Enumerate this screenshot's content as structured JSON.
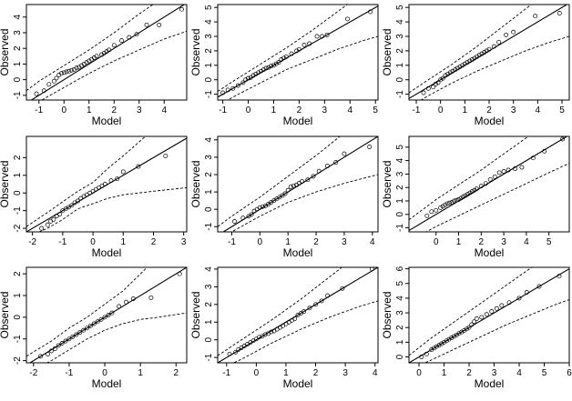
{
  "chart_data": [
    {
      "type": "scatter",
      "xlabel": "Model",
      "ylabel": "Observed",
      "xlim": [
        -1.5,
        4.9
      ],
      "ylim": [
        -1.3,
        4.8
      ],
      "xticks": [
        "-1",
        "0",
        "1",
        "2",
        "3",
        "4"
      ],
      "yticks": [
        "-1",
        "0",
        "1",
        "2",
        "3",
        "4"
      ],
      "reference_line": {
        "slope": 1,
        "intercept": 0
      },
      "points": {
        "x": [
          -1.1,
          -0.8,
          -0.6,
          -0.4,
          -0.3,
          -0.2,
          -0.1,
          0.0,
          0.1,
          0.2,
          0.3,
          0.4,
          0.5,
          0.6,
          0.7,
          0.8,
          0.9,
          1.0,
          1.1,
          1.2,
          1.3,
          1.5,
          1.6,
          1.7,
          1.8,
          2.0,
          2.3,
          2.6,
          2.9,
          3.3,
          3.8,
          4.7
        ],
        "y": [
          -0.9,
          -0.7,
          -0.3,
          -0.1,
          0.1,
          0.3,
          0.4,
          0.45,
          0.5,
          0.55,
          0.6,
          0.65,
          0.75,
          0.8,
          0.9,
          1.0,
          1.1,
          1.2,
          1.3,
          1.4,
          1.5,
          1.6,
          1.7,
          1.8,
          1.9,
          2.2,
          2.5,
          2.7,
          2.9,
          3.5,
          3.5,
          4.5
        ]
      },
      "envelope": {
        "x": [
          -1.5,
          -1.0,
          0.0,
          1.0,
          2.0,
          3.0,
          4.0,
          4.9
        ],
        "upper": [
          -0.7,
          -0.1,
          0.9,
          1.9,
          3.0,
          4.2,
          5.3,
          6.5
        ],
        "lower": [
          -1.9,
          -1.4,
          -0.5,
          0.4,
          1.2,
          1.9,
          2.6,
          3.1
        ]
      }
    },
    {
      "type": "scatter",
      "xlabel": "Model",
      "ylabel": "Observed",
      "xlim": [
        -1.2,
        5.1
      ],
      "ylim": [
        -1.4,
        5.2
      ],
      "xticks": [
        "-1",
        "0",
        "1",
        "2",
        "3",
        "4",
        "5"
      ],
      "yticks": [
        "-1",
        "0",
        "1",
        "2",
        "3",
        "4",
        "5"
      ],
      "reference_line": {
        "slope": 1,
        "intercept": 0
      },
      "points": {
        "x": [
          -1.0,
          -0.8,
          -0.6,
          -0.4,
          -0.2,
          -0.1,
          0.0,
          0.1,
          0.2,
          0.3,
          0.4,
          0.5,
          0.6,
          0.7,
          0.8,
          0.9,
          1.0,
          1.1,
          1.2,
          1.3,
          1.4,
          1.5,
          1.7,
          1.9,
          2.0,
          2.2,
          2.4,
          2.7,
          2.9,
          3.1,
          3.9,
          4.8
        ],
        "y": [
          -0.9,
          -0.7,
          -0.6,
          -0.4,
          -0.2,
          0.0,
          0.1,
          0.15,
          0.3,
          0.4,
          0.5,
          0.6,
          0.7,
          0.8,
          0.85,
          0.95,
          1.0,
          1.1,
          1.2,
          1.4,
          1.5,
          1.6,
          1.8,
          2.0,
          2.1,
          2.4,
          2.5,
          3.0,
          3.0,
          3.1,
          4.2,
          4.7
        ]
      },
      "envelope": {
        "x": [
          -1.2,
          -0.5,
          0.5,
          1.5,
          2.5,
          3.5,
          4.5,
          5.1
        ],
        "upper": [
          -0.8,
          0.0,
          1.1,
          2.2,
          3.4,
          4.7,
          6.0,
          6.8
        ],
        "lower": [
          -1.8,
          -1.1,
          -0.2,
          0.7,
          1.4,
          2.1,
          2.7,
          3.0
        ]
      }
    },
    {
      "type": "scatter",
      "xlabel": "Model",
      "ylabel": "Observed",
      "xlim": [
        -1.3,
        5.3
      ],
      "ylim": [
        -1.4,
        5.2
      ],
      "xticks": [
        "-1",
        "0",
        "1",
        "2",
        "3",
        "4",
        "5"
      ],
      "yticks": [
        "-1",
        "0",
        "1",
        "2",
        "3",
        "4",
        "5"
      ],
      "reference_line": {
        "slope": 1,
        "intercept": 0
      },
      "points": {
        "x": [
          -0.7,
          -0.5,
          -0.3,
          -0.2,
          -0.1,
          0.0,
          0.1,
          0.2,
          0.3,
          0.4,
          0.5,
          0.6,
          0.7,
          0.8,
          0.9,
          1.0,
          1.1,
          1.2,
          1.3,
          1.4,
          1.5,
          1.6,
          1.7,
          1.8,
          1.9,
          2.0,
          2.2,
          2.4,
          2.7,
          3.0,
          3.9,
          4.9
        ],
        "y": [
          -0.9,
          -0.6,
          -0.5,
          -0.3,
          -0.2,
          0.0,
          0.1,
          0.3,
          0.4,
          0.5,
          0.6,
          0.7,
          0.8,
          0.9,
          1.0,
          1.1,
          1.2,
          1.3,
          1.4,
          1.5,
          1.6,
          1.7,
          1.8,
          1.9,
          2.0,
          2.1,
          2.3,
          2.6,
          3.1,
          3.3,
          4.4,
          4.6
        ]
      },
      "envelope": {
        "x": [
          -1.3,
          -0.5,
          0.5,
          1.5,
          2.5,
          3.5,
          4.5,
          5.3
        ],
        "upper": [
          -0.9,
          0.0,
          1.1,
          2.3,
          3.6,
          4.9,
          6.2,
          7.2
        ],
        "lower": [
          -1.9,
          -1.1,
          -0.2,
          0.6,
          1.3,
          2.0,
          2.6,
          3.0
        ]
      }
    },
    {
      "type": "scatter",
      "xlabel": "Model",
      "ylabel": "Observed",
      "xlim": [
        -2.2,
        3.1
      ],
      "ylim": [
        -2.2,
        3.2
      ],
      "xticks": [
        "-2",
        "-1",
        "0",
        "1",
        "2",
        "3"
      ],
      "yticks": [
        "-2",
        "-1",
        "0",
        "1",
        "2"
      ],
      "reference_line": {
        "slope": 1,
        "intercept": 0
      },
      "points": {
        "x": [
          -1.7,
          -1.5,
          -1.4,
          -1.3,
          -1.2,
          -1.1,
          -1.0,
          -0.9,
          -0.8,
          -0.7,
          -0.6,
          -0.5,
          -0.4,
          -0.3,
          -0.2,
          -0.1,
          0.0,
          0.1,
          0.2,
          0.3,
          0.4,
          0.6,
          0.8,
          1.0,
          1.5,
          2.4
        ],
        "y": [
          -2.0,
          -1.8,
          -1.6,
          -1.5,
          -1.3,
          -1.2,
          -1.0,
          -0.9,
          -0.8,
          -0.7,
          -0.55,
          -0.45,
          -0.3,
          -0.2,
          -0.1,
          0.0,
          0.1,
          0.2,
          0.3,
          0.4,
          0.5,
          0.7,
          0.8,
          1.2,
          1.5,
          2.1
        ]
      },
      "envelope": {
        "x": [
          -2.2,
          -1.5,
          -1.0,
          -0.5,
          0.0,
          0.5,
          1.0,
          2.0,
          3.1
        ],
        "upper": [
          -1.9,
          -1.1,
          -0.5,
          0.1,
          0.6,
          1.4,
          2.1,
          3.6,
          5.0
        ],
        "lower": [
          -2.5,
          -2.0,
          -1.5,
          -0.9,
          -0.6,
          -0.3,
          -0.1,
          0.1,
          0.3
        ]
      }
    },
    {
      "type": "scatter",
      "xlabel": "Model",
      "ylabel": "Observed",
      "xlim": [
        -1.5,
        4.2
      ],
      "ylim": [
        -1.3,
        4.2
      ],
      "xticks": [
        "-1",
        "0",
        "1",
        "2",
        "3",
        "4"
      ],
      "yticks": [
        "-1",
        "0",
        "1",
        "2",
        "3",
        "4"
      ],
      "reference_line": {
        "slope": 1,
        "intercept": 0
      },
      "points": {
        "x": [
          -0.9,
          -0.6,
          -0.4,
          -0.3,
          -0.2,
          -0.1,
          0.0,
          0.1,
          0.2,
          0.3,
          0.4,
          0.5,
          0.6,
          0.7,
          0.8,
          0.9,
          1.0,
          1.1,
          1.2,
          1.3,
          1.4,
          1.5,
          1.7,
          1.9,
          2.1,
          2.4,
          2.7,
          3.0,
          3.9
        ],
        "y": [
          -0.7,
          -0.5,
          -0.4,
          -0.3,
          -0.1,
          0.0,
          0.1,
          0.15,
          0.2,
          0.3,
          0.4,
          0.5,
          0.6,
          0.7,
          0.8,
          0.9,
          1.1,
          1.3,
          1.35,
          1.4,
          1.5,
          1.6,
          1.7,
          1.9,
          2.2,
          2.5,
          2.7,
          3.2,
          3.6
        ]
      },
      "envelope": {
        "x": [
          -1.5,
          -1.0,
          0.0,
          1.0,
          2.0,
          3.0,
          4.2
        ],
        "upper": [
          -1.0,
          -0.4,
          0.7,
          1.9,
          3.1,
          4.4,
          6.0
        ],
        "lower": [
          -1.8,
          -1.3,
          -0.4,
          0.4,
          1.0,
          1.5,
          2.0
        ]
      }
    },
    {
      "type": "scatter",
      "xlabel": "Model",
      "ylabel": "Observed",
      "xlim": [
        -1.2,
        5.9
      ],
      "ylim": [
        -1.3,
        5.8
      ],
      "xticks": [
        "0",
        "1",
        "2",
        "3",
        "4",
        "5"
      ],
      "yticks": [
        "-1",
        "0",
        "1",
        "2",
        "3",
        "4",
        "5"
      ],
      "reference_line": {
        "slope": 1,
        "intercept": 0
      },
      "points": {
        "x": [
          -0.4,
          -0.2,
          0.0,
          0.2,
          0.3,
          0.4,
          0.5,
          0.6,
          0.7,
          0.8,
          0.9,
          1.0,
          1.1,
          1.2,
          1.3,
          1.4,
          1.5,
          1.6,
          1.7,
          1.8,
          2.0,
          2.2,
          2.4,
          2.6,
          2.8,
          3.0,
          3.2,
          3.5,
          3.8,
          4.3,
          4.8,
          5.6
        ],
        "y": [
          -0.1,
          0.2,
          0.3,
          0.5,
          0.6,
          0.7,
          0.8,
          0.85,
          0.9,
          1.0,
          1.05,
          1.1,
          1.2,
          1.3,
          1.4,
          1.5,
          1.6,
          1.7,
          1.8,
          1.9,
          2.1,
          2.3,
          2.6,
          2.8,
          3.1,
          3.2,
          3.3,
          3.4,
          3.5,
          4.2,
          4.7,
          5.6
        ]
      },
      "envelope": {
        "x": [
          -1.2,
          0.0,
          1.0,
          2.0,
          3.0,
          4.0,
          5.0,
          5.9
        ],
        "upper": [
          -0.4,
          1.1,
          2.2,
          3.3,
          4.5,
          5.7,
          7.0,
          8.1
        ],
        "lower": [
          -2.0,
          -0.9,
          -0.1,
          0.7,
          1.5,
          2.3,
          3.1,
          3.8
        ]
      }
    },
    {
      "type": "scatter",
      "xlabel": "Model",
      "ylabel": "Observed",
      "xlim": [
        -2.2,
        2.3
      ],
      "ylim": [
        -2.1,
        2.3
      ],
      "xticks": [
        "-2",
        "-1",
        "0",
        "1",
        "2"
      ],
      "yticks": [
        "-2",
        "-1",
        "0",
        "1",
        "2"
      ],
      "reference_line": {
        "slope": 1,
        "intercept": 0
      },
      "points": {
        "x": [
          -1.8,
          -1.6,
          -1.5,
          -1.4,
          -1.3,
          -1.2,
          -1.1,
          -1.0,
          -0.9,
          -0.8,
          -0.7,
          -0.6,
          -0.5,
          -0.4,
          -0.3,
          -0.2,
          -0.1,
          0.0,
          0.1,
          0.2,
          0.4,
          0.6,
          0.8,
          1.3,
          2.1
        ],
        "y": [
          -1.8,
          -1.7,
          -1.55,
          -1.45,
          -1.3,
          -1.2,
          -1.1,
          -1.0,
          -0.9,
          -0.8,
          -0.7,
          -0.6,
          -0.5,
          -0.4,
          -0.3,
          -0.2,
          -0.1,
          0.0,
          0.1,
          0.2,
          0.5,
          0.7,
          0.85,
          0.9,
          2.0
        ]
      },
      "envelope": {
        "x": [
          -2.2,
          -1.5,
          -1.0,
          -0.5,
          0.0,
          0.5,
          1.0,
          1.5,
          2.3
        ],
        "upper": [
          -1.8,
          -1.1,
          -0.5,
          0.0,
          0.6,
          1.2,
          2.0,
          2.8,
          4.0
        ],
        "lower": [
          -2.6,
          -2.0,
          -1.5,
          -1.0,
          -0.6,
          -0.3,
          -0.1,
          0.0,
          0.2
        ]
      }
    },
    {
      "type": "scatter",
      "xlabel": "Model",
      "ylabel": "Observed",
      "xlim": [
        -1.3,
        4.1
      ],
      "ylim": [
        -1.3,
        4.1
      ],
      "xticks": [
        "-1",
        "0",
        "1",
        "2",
        "3",
        "4"
      ],
      "yticks": [
        "-1",
        "0",
        "1",
        "2",
        "3",
        "4"
      ],
      "reference_line": {
        "slope": 1,
        "intercept": 0
      },
      "points": {
        "x": [
          -0.9,
          -0.7,
          -0.6,
          -0.5,
          -0.4,
          -0.3,
          -0.2,
          -0.1,
          0.0,
          0.1,
          0.2,
          0.3,
          0.4,
          0.5,
          0.6,
          0.7,
          0.8,
          0.9,
          1.0,
          1.1,
          1.2,
          1.3,
          1.4,
          1.5,
          1.6,
          1.8,
          2.0,
          2.2,
          2.4,
          2.9,
          3.9
        ],
        "y": [
          -0.8,
          -0.7,
          -0.55,
          -0.45,
          -0.35,
          -0.25,
          -0.15,
          -0.05,
          0.05,
          0.15,
          0.2,
          0.3,
          0.35,
          0.45,
          0.5,
          0.6,
          0.7,
          0.8,
          0.9,
          1.0,
          1.1,
          1.2,
          1.4,
          1.5,
          1.6,
          1.8,
          2.0,
          2.2,
          2.5,
          2.9,
          4.0
        ]
      },
      "envelope": {
        "x": [
          -1.3,
          -0.5,
          0.5,
          1.5,
          2.5,
          3.5,
          4.1
        ],
        "upper": [
          -0.9,
          0.0,
          1.1,
          2.3,
          3.6,
          4.9,
          5.7
        ],
        "lower": [
          -1.7,
          -1.1,
          -0.2,
          0.6,
          1.3,
          1.9,
          2.2
        ]
      }
    },
    {
      "type": "scatter",
      "xlabel": "Model",
      "ylabel": "Observed",
      "xlim": [
        -0.4,
        6.0
      ],
      "ylim": [
        -0.4,
        6.1
      ],
      "xticks": [
        "0",
        "1",
        "2",
        "3",
        "4",
        "5",
        "6"
      ],
      "yticks": [
        "0",
        "1",
        "2",
        "3",
        "4",
        "5",
        "6"
      ],
      "reference_line": {
        "slope": 1,
        "intercept": 0
      },
      "points": {
        "x": [
          0.1,
          0.3,
          0.5,
          0.6,
          0.7,
          0.8,
          0.9,
          1.0,
          1.1,
          1.2,
          1.3,
          1.4,
          1.5,
          1.6,
          1.7,
          1.8,
          1.9,
          2.0,
          2.1,
          2.2,
          2.3,
          2.5,
          2.7,
          2.9,
          3.1,
          3.3,
          3.6,
          4.0,
          4.3,
          4.8,
          5.6
        ],
        "y": [
          0.0,
          0.2,
          0.5,
          0.6,
          0.7,
          0.8,
          0.9,
          1.0,
          1.1,
          1.2,
          1.3,
          1.4,
          1.5,
          1.6,
          1.7,
          1.8,
          1.9,
          2.0,
          2.2,
          2.4,
          2.6,
          2.7,
          2.9,
          3.1,
          3.3,
          3.5,
          3.7,
          4.0,
          4.4,
          4.8,
          5.5
        ]
      },
      "envelope": {
        "x": [
          -0.4,
          0.5,
          1.5,
          2.5,
          3.5,
          4.5,
          5.5,
          6.0
        ],
        "upper": [
          0.1,
          1.3,
          2.5,
          3.7,
          4.9,
          6.1,
          7.3,
          7.9
        ],
        "lower": [
          -0.9,
          -0.2,
          0.6,
          1.4,
          2.2,
          2.9,
          3.6,
          3.9
        ]
      }
    }
  ]
}
